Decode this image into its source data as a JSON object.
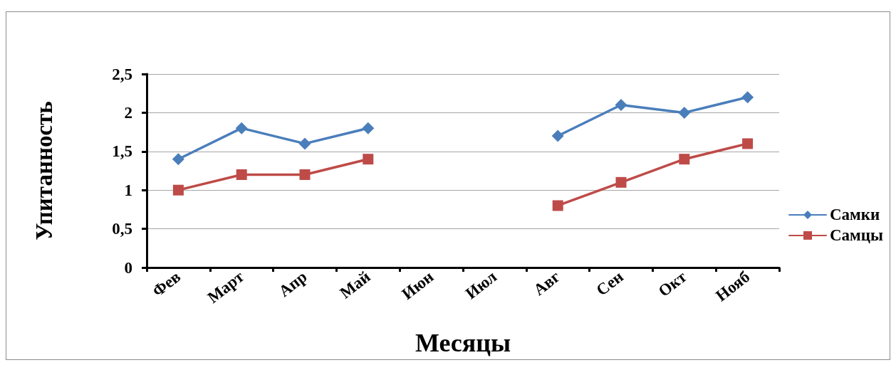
{
  "chart_data": {
    "type": "line",
    "xlabel": "Месяцы",
    "ylabel": "Упитанность",
    "categories": [
      "Фев",
      "Март",
      "Апр",
      "Май",
      "Июн",
      "Июл",
      "Авг",
      "Сен",
      "Окт",
      "Нояб"
    ],
    "series": [
      {
        "name": "Самки",
        "color": "#4a7ebb",
        "marker": "diamond",
        "values": [
          1.4,
          1.8,
          1.6,
          1.8,
          null,
          null,
          1.7,
          2.1,
          2.0,
          2.2
        ]
      },
      {
        "name": "Самцы",
        "color": "#be4b48",
        "marker": "square",
        "values": [
          1.0,
          1.2,
          1.2,
          1.4,
          null,
          null,
          0.8,
          1.1,
          1.4,
          1.6
        ]
      }
    ],
    "ylim": [
      0,
      2.5
    ],
    "yticks": [
      0,
      {
        "value": 0.5,
        "label": "0,5"
      },
      1,
      {
        "value": 1.5,
        "label": "1,5"
      },
      2,
      {
        "value": 2.5,
        "label": "2,5"
      }
    ],
    "grid": "y",
    "legend": "right",
    "line_style": "solid"
  }
}
